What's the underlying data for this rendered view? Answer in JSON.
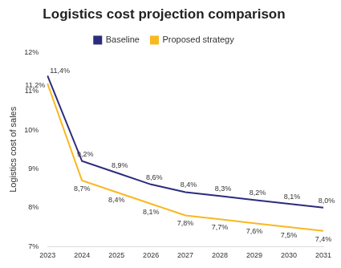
{
  "chart_data": {
    "type": "line",
    "title": "Logistics cost projection comparison",
    "y_label": "Logistics cost of sales",
    "categories": [
      "2023",
      "2024",
      "2025",
      "2026",
      "2027",
      "2028",
      "2029",
      "2030",
      "2031"
    ],
    "series": [
      {
        "name": "Baseline",
        "color": "#2b2c7c",
        "values": [
          11.4,
          9.2,
          8.9,
          8.6,
          8.4,
          8.3,
          8.2,
          8.1,
          8.0
        ],
        "value_labels": [
          "11,4%",
          "9,2%",
          "8,9%",
          "8,6%",
          "8,4%",
          "8,3%",
          "8,2%",
          "8,1%",
          "8,0%"
        ]
      },
      {
        "name": "Proposed strategy",
        "color": "#f9b820",
        "values": [
          11.2,
          8.7,
          8.4,
          8.1,
          7.8,
          7.7,
          7.6,
          7.5,
          7.4
        ],
        "value_labels": [
          "11,2%",
          "8,7%",
          "8,4%",
          "8,1%",
          "7,8%",
          "7,7%",
          "7,6%",
          "7,5%",
          "7,4%"
        ]
      }
    ],
    "ylim": [
      7,
      12
    ],
    "yticks": [
      {
        "value": 7,
        "label": "7%"
      },
      {
        "value": 8,
        "label": "8%"
      },
      {
        "value": 9,
        "label": "9%"
      },
      {
        "value": 10,
        "label": "10%"
      },
      {
        "value": 11,
        "label": "11%"
      },
      {
        "value": 12,
        "label": "12%"
      }
    ],
    "grid": false,
    "legend": "top",
    "data_labels": true
  }
}
